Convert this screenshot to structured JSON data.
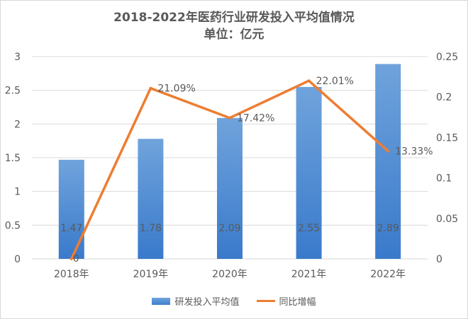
{
  "title": {
    "line1": "2018-2022年医药行业研发投入平均值情况",
    "line2": "单位：亿元"
  },
  "colors": {
    "bar": "#5b9bd5",
    "bar_top": "#6fa3dc",
    "bar_bottom": "#3a7acb",
    "line": "#ed7d31",
    "grid": "#d9d9d9",
    "text": "#595959"
  },
  "chart_data": {
    "type": "bar",
    "categories": [
      "2018年",
      "2019年",
      "2020年",
      "2021年",
      "2022年"
    ],
    "series": [
      {
        "name": "研发投入平均值",
        "type": "bar",
        "axis": "left",
        "values": [
          1.47,
          1.78,
          2.09,
          2.55,
          2.89
        ],
        "labels": [
          "1.47",
          "1.78",
          "2.09",
          "2.55",
          "2.89"
        ]
      },
      {
        "name": "同比增幅",
        "type": "line",
        "axis": "right",
        "values": [
          0,
          0.2109,
          0.1742,
          0.2201,
          0.1333
        ],
        "labels": [
          "0",
          "21.09%",
          "17.42%",
          "22.01%",
          "13.33%"
        ]
      }
    ],
    "y_left": {
      "ylim": [
        0,
        3
      ],
      "ticks": [
        0,
        0.5,
        1,
        1.5,
        2,
        2.5,
        3
      ],
      "tick_labels": [
        "0",
        "0.5",
        "1",
        "1.5",
        "2",
        "2.5",
        "3"
      ]
    },
    "y_right": {
      "ylim": [
        0,
        0.25
      ],
      "ticks": [
        0,
        0.05,
        0.1,
        0.15,
        0.2,
        0.25
      ],
      "tick_labels": [
        "0",
        "0.05",
        "0.1",
        "0.15",
        "0.2",
        "0.25"
      ]
    },
    "legend": [
      "研发投入平均值",
      "同比增幅"
    ],
    "legend_position": "bottom",
    "grid": true
  }
}
